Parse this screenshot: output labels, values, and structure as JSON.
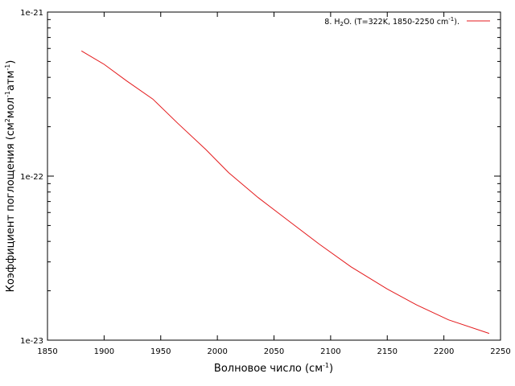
{
  "chart_data": {
    "type": "line",
    "xlabel": {
      "main": "Волновое число (см",
      "sup": "-1",
      "tail": ")"
    },
    "ylabel": {
      "p1": "Коэффициент поглощения (см",
      "s1": "2",
      "p2": "мол",
      "s2": "-1",
      "p3": "атм",
      "s3": "-1",
      "p4": ")"
    },
    "xlim": [
      1850,
      2250
    ],
    "ylim": [
      1e-23,
      1e-21
    ],
    "yscale": "log",
    "x_ticks": [
      1850,
      1900,
      1950,
      2000,
      2050,
      2100,
      2150,
      2200,
      2250
    ],
    "x_tick_labels": [
      "1850",
      "1900",
      "1950",
      "2000",
      "2050",
      "2100",
      "2150",
      "2200",
      "2250"
    ],
    "y_ticks": [
      1e-23,
      1e-22,
      1e-21
    ],
    "y_tick_labels": [
      "1e-23",
      "1e-22",
      "1e-21"
    ],
    "grid": false,
    "legend_position": "top-right",
    "series": [
      {
        "name": {
          "a": "8. H",
          "sub": "2",
          "b": "O. (T=322K, 1850-2250 cm",
          "sup": "-1",
          "c": ")."
        },
        "color": "#e41a1c",
        "x": [
          1880,
          1900,
          1920,
          1943,
          1965,
          1990,
          2010,
          2036,
          2065,
          2090,
          2118,
          2150,
          2176,
          2204,
          2240
        ],
        "y": [
          5.8e-22,
          4.8e-22,
          3.8e-22,
          2.95e-22,
          2.1e-22,
          1.45e-22,
          1.05e-22,
          7.4e-23,
          5.2e-23,
          3.85e-23,
          2.8e-23,
          2.05e-23,
          1.64e-23,
          1.33e-23,
          1.1e-23
        ]
      }
    ]
  }
}
